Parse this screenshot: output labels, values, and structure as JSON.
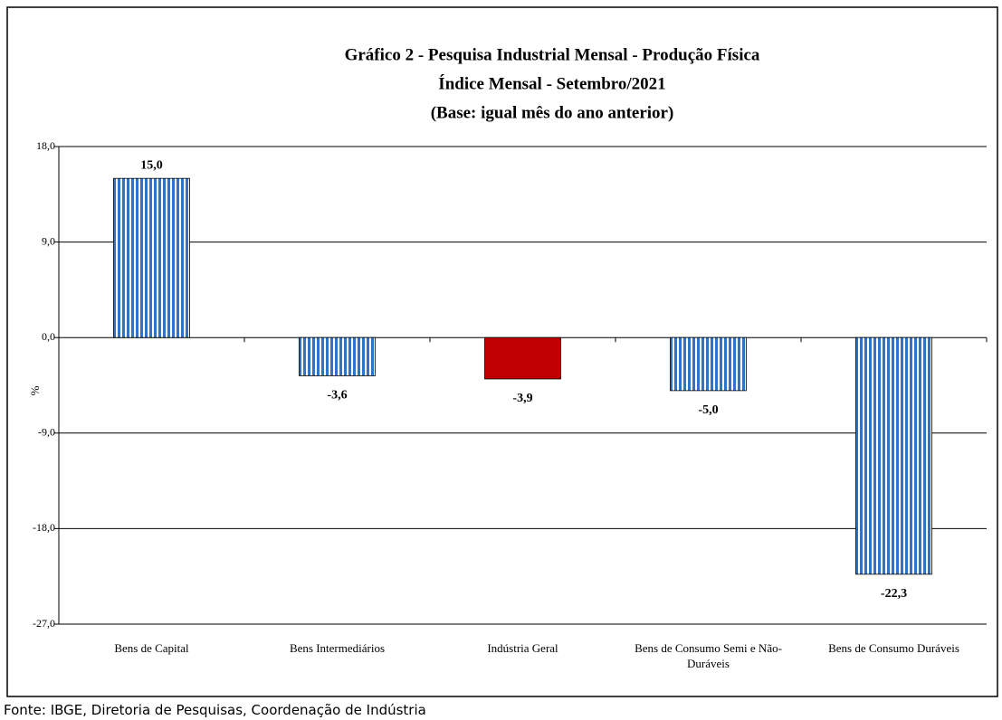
{
  "chart_data": {
    "type": "bar",
    "title": [
      "Gráfico 2 - Pesquisa Industrial Mensal - Produção Física",
      "Índice Mensal - Setembro/2021",
      "(Base: igual mês do ano anterior)"
    ],
    "y_label": "%",
    "categories": [
      "Bens de Capital",
      "Bens Intermediários",
      "Indústria Geral",
      "Bens de Consumo Semi e Não-Duráveis",
      "Bens de Consumo Duráveis"
    ],
    "values": [
      15.0,
      -3.6,
      -3.9,
      -5.0,
      -22.3
    ],
    "value_labels": [
      "15,0",
      "-3,6",
      "-3,9",
      "-5,0",
      "-22,3"
    ],
    "colors": [
      "#2f74c8",
      "#2f74c8",
      "#c00000",
      "#2f74c8",
      "#2f74c8"
    ],
    "hatch": [
      true,
      true,
      false,
      true,
      true
    ],
    "ylim": [
      -27,
      18
    ],
    "yticks": [
      {
        "value": -27,
        "label": "-27,0"
      },
      {
        "value": -18,
        "label": "-18,0"
      },
      {
        "value": -9,
        "label": "-9,0"
      },
      {
        "value": 0,
        "label": "0,0"
      },
      {
        "value": 9,
        "label": "9,0"
      },
      {
        "value": 18,
        "label": "18,0"
      }
    ],
    "grid": true,
    "source": "Fonte: IBGE, Diretoria de Pesquisas, Coordenação de Indústria"
  }
}
